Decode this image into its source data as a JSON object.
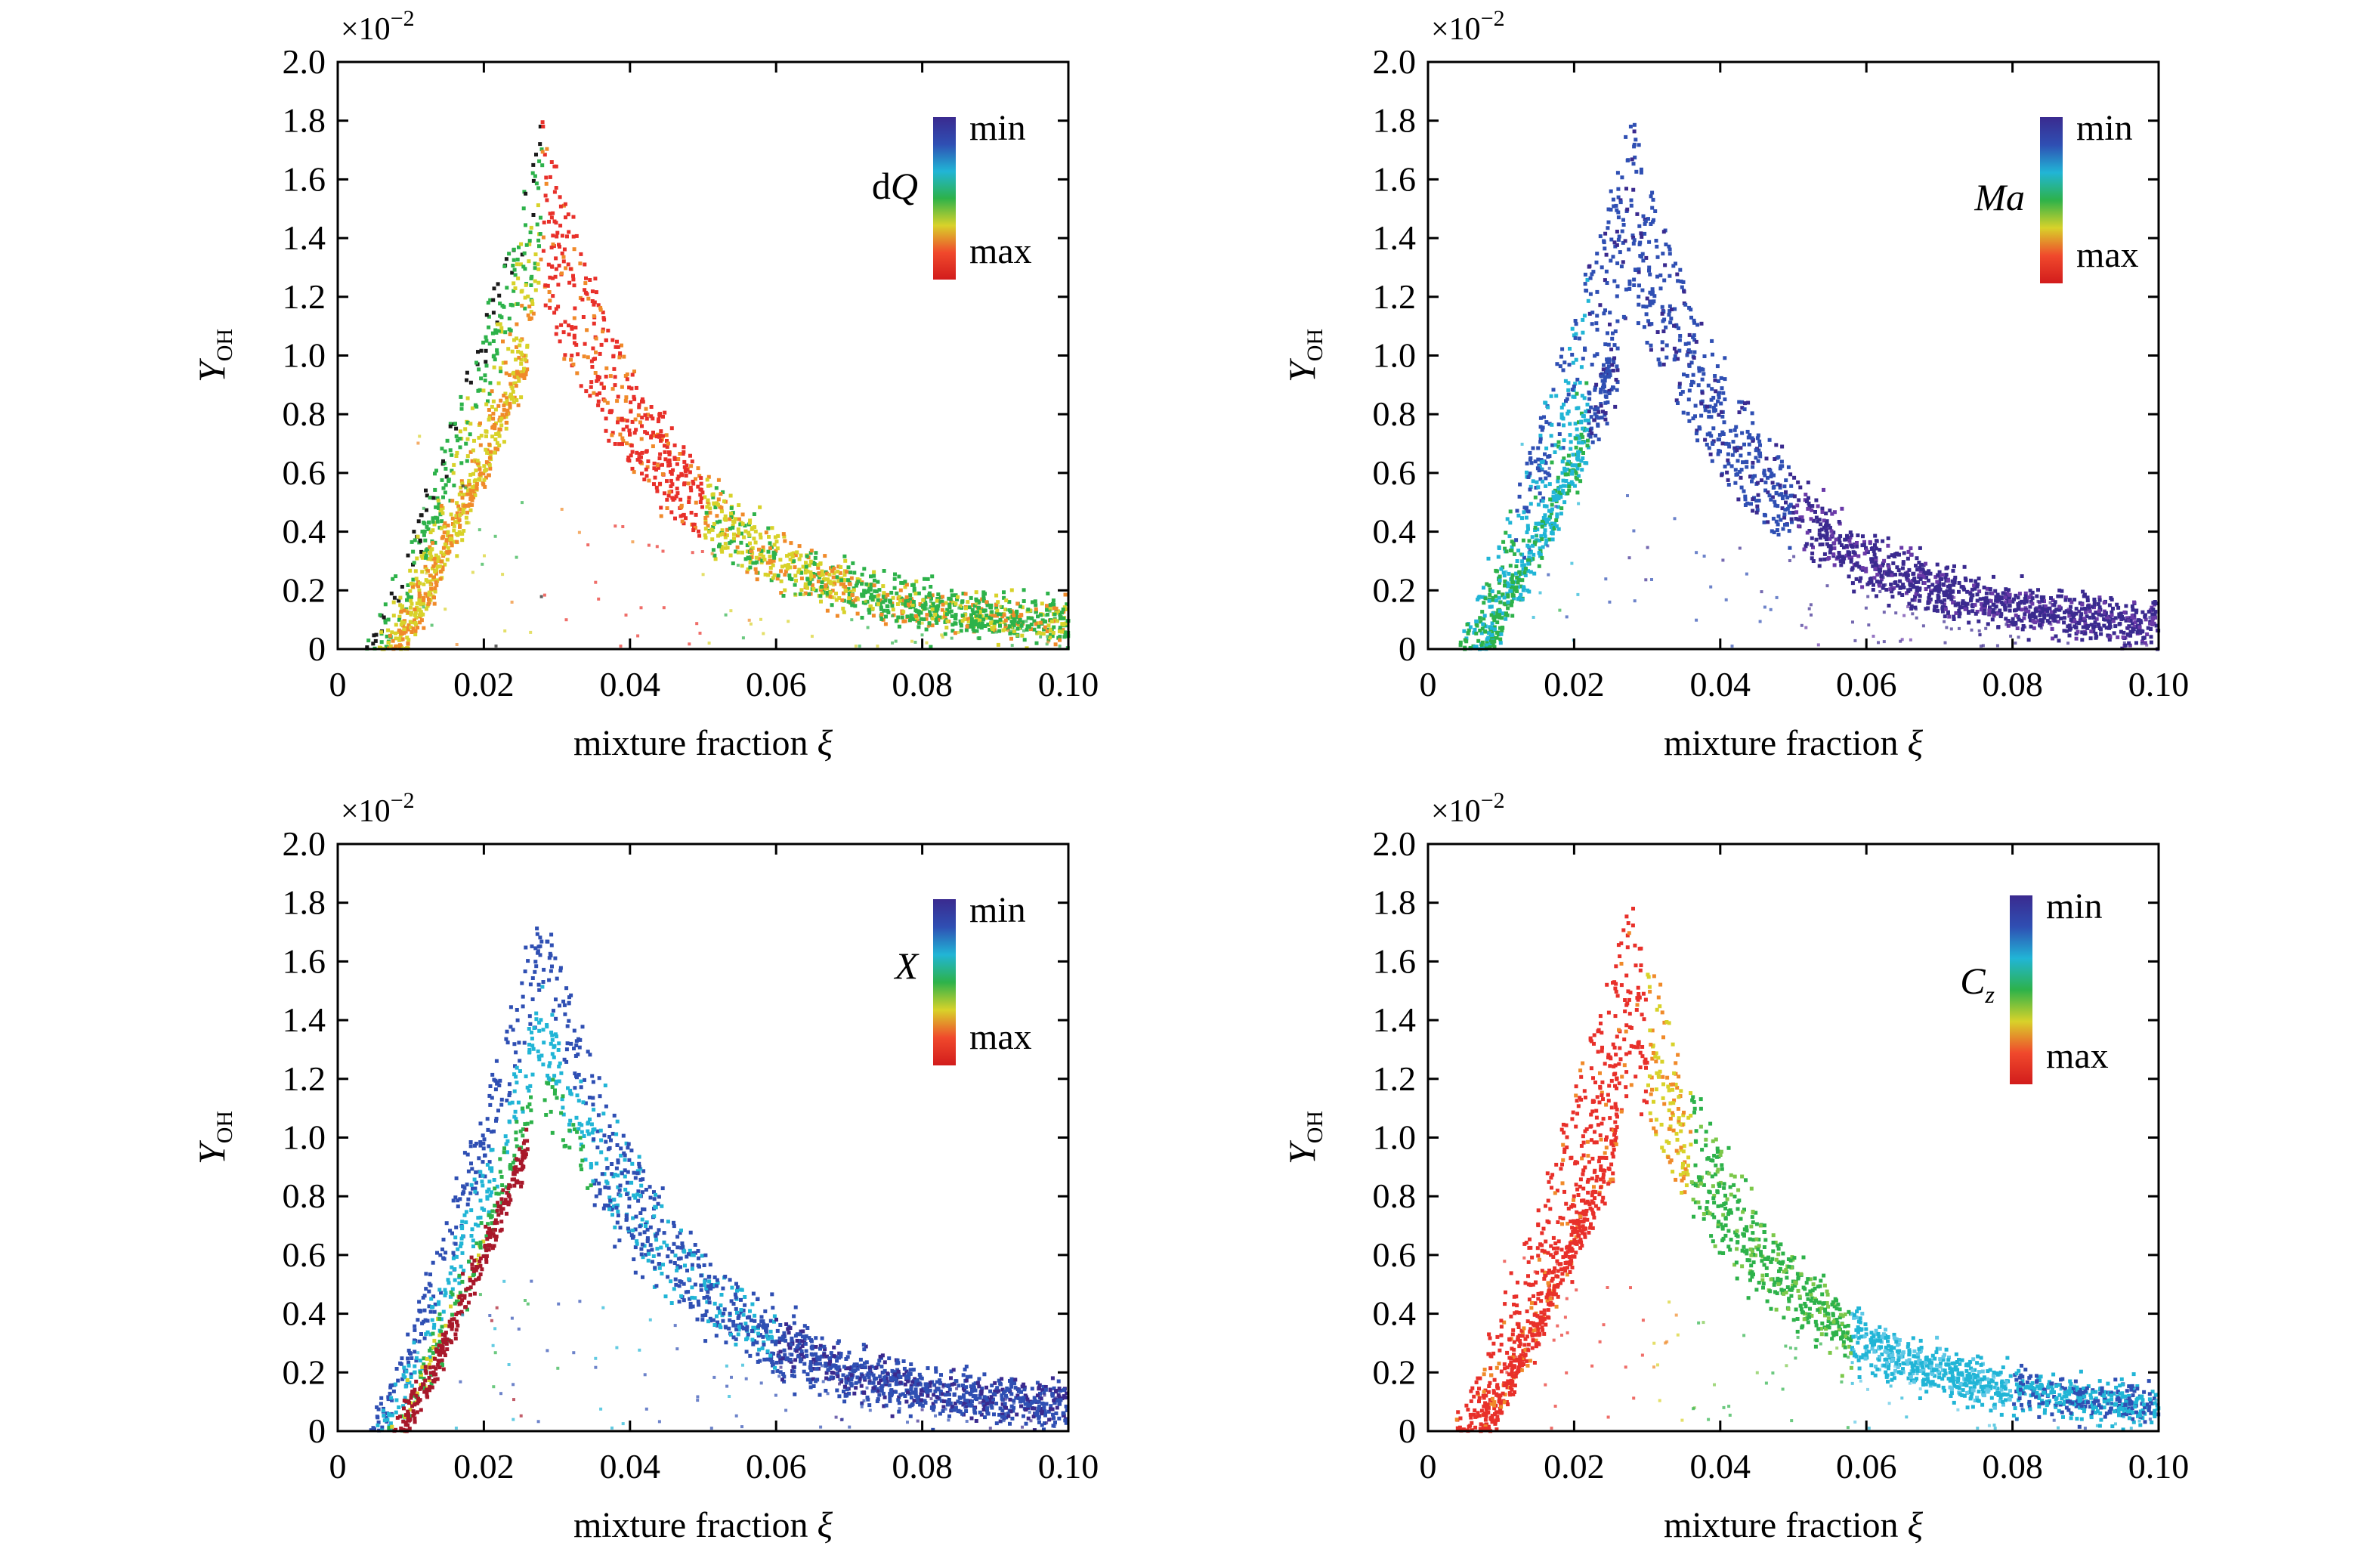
{
  "chart_data": [
    {
      "type": "scatter",
      "xlabel_text": "mixture fraction ",
      "xlabel_symbol": "ξ",
      "ylabel_symbol": "Y",
      "ylabel_subscript": "OH",
      "y_exponent": "×10",
      "y_exponent_power": "−2",
      "xlim": [
        0,
        0.1
      ],
      "ylim": [
        0,
        2.0
      ],
      "x_ticks": [
        "0",
        "0.02",
        "0.04",
        "0.06",
        "0.08",
        "0.10"
      ],
      "y_ticks": [
        "0",
        "0.2",
        "0.4",
        "0.6",
        "0.8",
        "1.0",
        "1.2",
        "1.4",
        "1.6",
        "1.8",
        "2.0"
      ],
      "grid": false,
      "colorbar": {
        "variable_prefix": "d",
        "variable": "Q",
        "subscript": "",
        "min_label": "min",
        "max_label": "max",
        "colors": [
          "#3a2a8f",
          "#2f4fb3",
          "#21b5d6",
          "#2db24a",
          "#d8d22a",
          "#f0492c",
          "#d21c1c"
        ]
      },
      "coloring": "mixed: green/yellow/black on lean side, red/orange near peak and rich side"
    },
    {
      "type": "scatter",
      "xlabel_text": "mixture fraction ",
      "xlabel_symbol": "ξ",
      "ylabel_symbol": "Y",
      "ylabel_subscript": "OH",
      "y_exponent": "×10",
      "y_exponent_power": "−2",
      "xlim": [
        0,
        0.1
      ],
      "ylim": [
        0,
        2.0
      ],
      "x_ticks": [
        "0",
        "0.02",
        "0.04",
        "0.06",
        "0.08",
        "0.10"
      ],
      "y_ticks": [
        "0",
        "0.2",
        "0.4",
        "0.6",
        "0.8",
        "1.0",
        "1.2",
        "1.4",
        "1.6",
        "1.8",
        "2.0"
      ],
      "grid": false,
      "colorbar": {
        "variable_prefix": "",
        "variable": "Ma",
        "subscript": "",
        "min_label": "min",
        "max_label": "max",
        "colors": [
          "#3a2a8f",
          "#2f4fb3",
          "#21b5d6",
          "#2db24a",
          "#d8d22a",
          "#f0492c",
          "#d21c1c"
        ]
      },
      "coloring": "mostly dark blue; cyan/green at low mixture fraction"
    },
    {
      "type": "scatter",
      "xlabel_text": "mixture fraction ",
      "xlabel_symbol": "ξ",
      "ylabel_symbol": "Y",
      "ylabel_subscript": "OH",
      "y_exponent": "×10",
      "y_exponent_power": "−2",
      "xlim": [
        0,
        0.1
      ],
      "ylim": [
        0,
        2.0
      ],
      "x_ticks": [
        "0",
        "0.02",
        "0.04",
        "0.06",
        "0.08",
        "0.10"
      ],
      "y_ticks": [
        "0",
        "0.2",
        "0.4",
        "0.6",
        "0.8",
        "1.0",
        "1.2",
        "1.4",
        "1.6",
        "1.8",
        "2.0"
      ],
      "grid": false,
      "colorbar": {
        "variable_prefix": "",
        "variable": "X",
        "subscript": "",
        "min_label": "min",
        "max_label": "max",
        "colors": [
          "#3a2a8f",
          "#2f4fb3",
          "#21b5d6",
          "#2db24a",
          "#d8d22a",
          "#f0492c",
          "#d21c1c"
        ]
      },
      "coloring": "blue upper envelope, cyan/green inner bands, dark red narrow band near origin"
    },
    {
      "type": "scatter",
      "xlabel_text": "mixture fraction ",
      "xlabel_symbol": "ξ",
      "ylabel_symbol": "Y",
      "ylabel_subscript": "OH",
      "y_exponent": "×10",
      "y_exponent_power": "−2",
      "xlim": [
        0,
        0.1
      ],
      "ylim": [
        0,
        2.0
      ],
      "x_ticks": [
        "0",
        "0.02",
        "0.04",
        "0.06",
        "0.08",
        "0.10"
      ],
      "y_ticks": [
        "0",
        "0.2",
        "0.4",
        "0.6",
        "0.8",
        "1.0",
        "1.2",
        "1.4",
        "1.6",
        "1.8",
        "2.0"
      ],
      "grid": false,
      "colorbar": {
        "variable_prefix": "",
        "variable": "C",
        "subscript": "z",
        "min_label": "min",
        "max_label": "max",
        "colors": [
          "#3a2a8f",
          "#2f4fb3",
          "#21b5d6",
          "#2db24a",
          "#d8d22a",
          "#f0492c",
          "#d21c1c"
        ]
      },
      "coloring": "red on lean side up to peak, yellow then green then cyan toward rich side"
    }
  ]
}
